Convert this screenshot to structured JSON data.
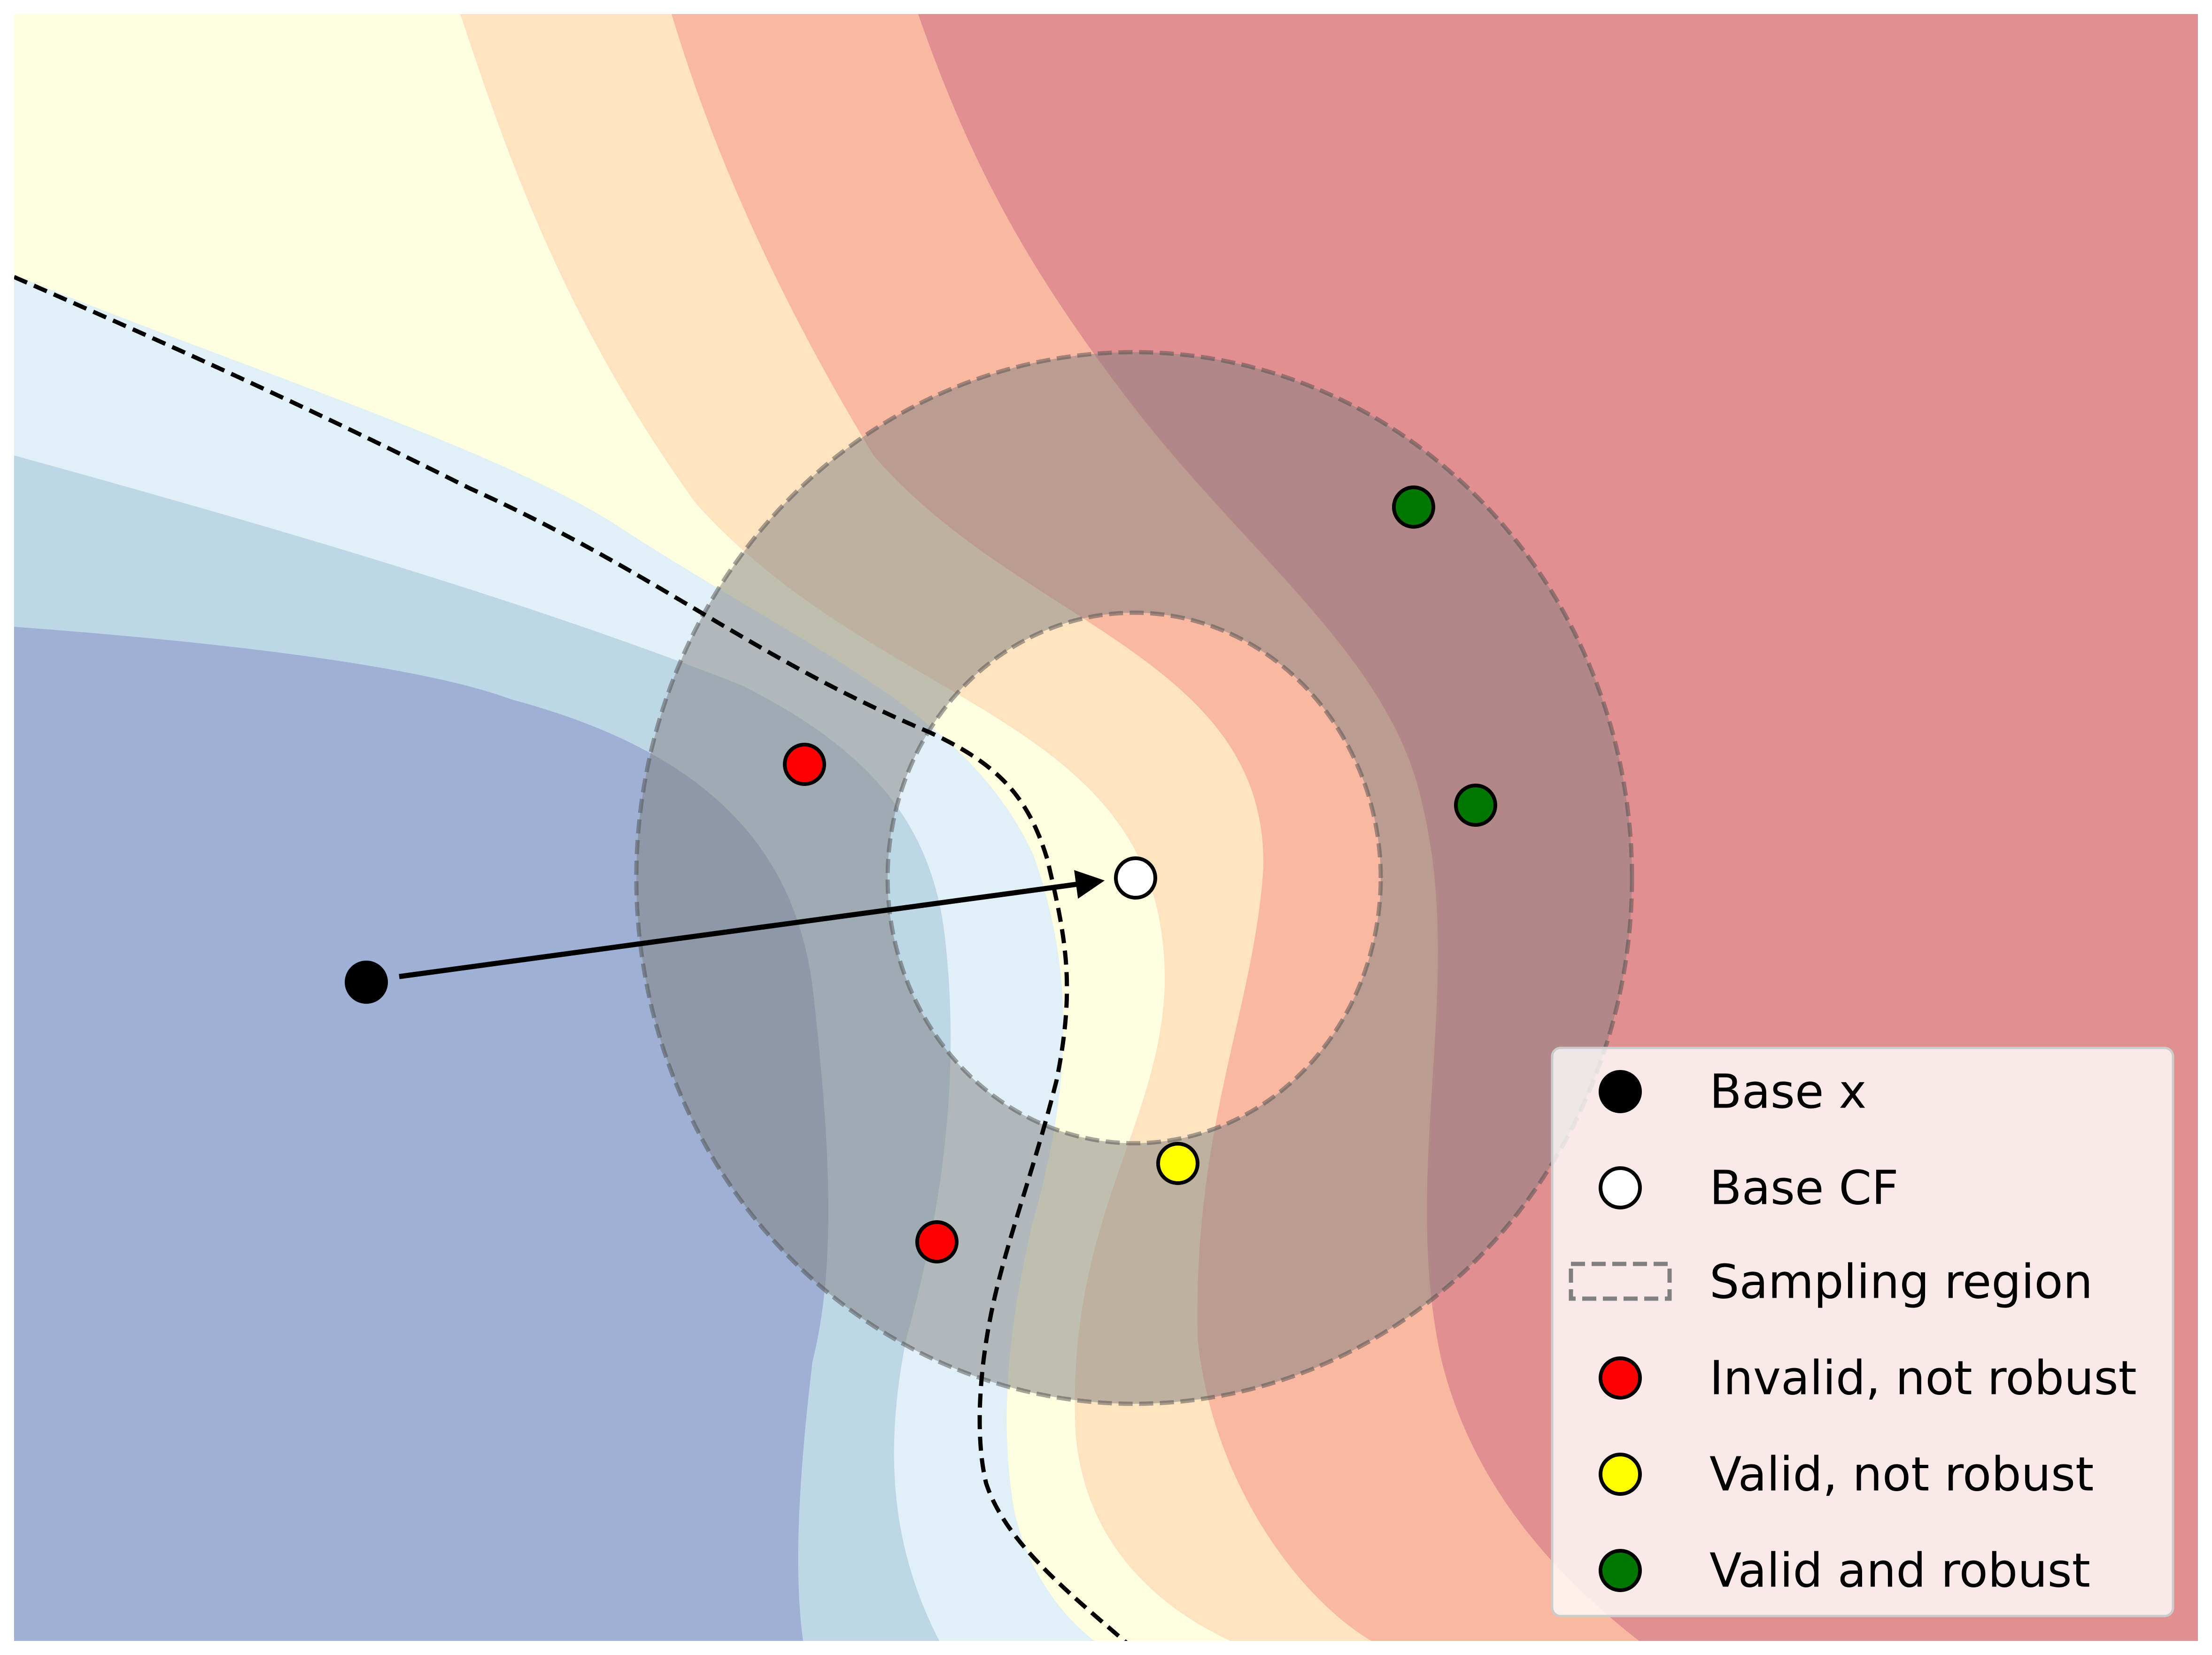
{
  "colors": {
    "band_dark_blue": "#9eb0d3",
    "band_mid_blue": "#bdd7e7",
    "band_light_blue": "#e1f0f6",
    "band_light_yellow": "#fefee0",
    "band_peach": "#fde3bf",
    "band_salmon": "#f9b8a2",
    "band_red": "#e28f91",
    "sampling_fill": "#808080",
    "decision_boundary": "#000000"
  },
  "points": {
    "base_x": {
      "color": "#000000"
    },
    "base_cf": {
      "color": "#ffffff"
    },
    "samples": [
      {
        "status": "invalid",
        "color": "#ff0000"
      },
      {
        "status": "invalid",
        "color": "#ff0000"
      },
      {
        "status": "valid_not_robust",
        "color": "#ffff00"
      },
      {
        "status": "valid_robust",
        "color": "#007700"
      },
      {
        "status": "valid_robust",
        "color": "#007700"
      }
    ]
  },
  "legend": {
    "items": [
      {
        "label": "Base x",
        "marker": "circle",
        "color": "#000000"
      },
      {
        "label": "Base CF",
        "marker": "circle",
        "color": "#ffffff"
      },
      {
        "label": "Sampling region",
        "marker": "dashed-rect",
        "color": "#808080"
      },
      {
        "label": "Invalid, not robust",
        "marker": "circle",
        "color": "#ff0000"
      },
      {
        "label": "Valid, not robust",
        "marker": "circle",
        "color": "#ffff00"
      },
      {
        "label": "Valid and robust",
        "marker": "circle",
        "color": "#007700"
      }
    ]
  }
}
